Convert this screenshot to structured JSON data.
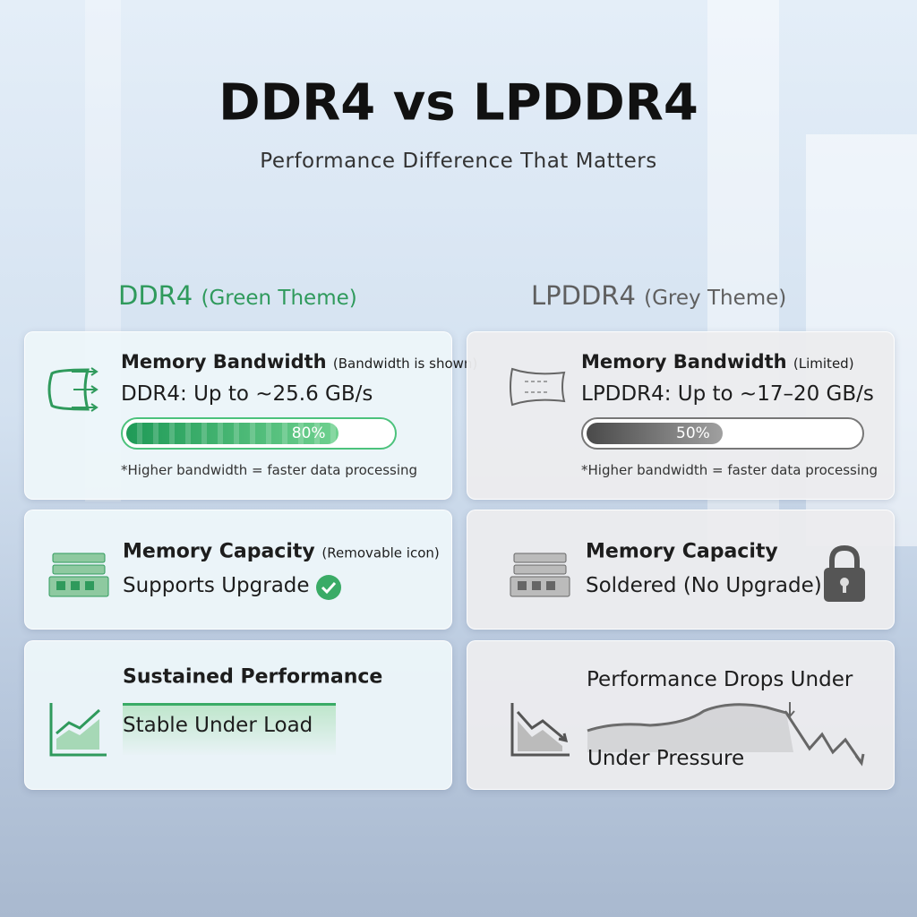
{
  "header": {
    "title": "DDR4 vs LPDDR4",
    "subtitle": "Performance Difference That Matters"
  },
  "columns": [
    {
      "name": "DDR4",
      "theme": "(Green Theme)",
      "color": "#2f9a5c",
      "cards": [
        {
          "title": "Memory Bandwidth",
          "note": "(Bandwidth is shown)",
          "text": "DDR4: Up to ~25.6 GB/s",
          "progress": {
            "value": 80,
            "label": "80%",
            "scale": [
              0,
              100
            ]
          },
          "footnote": "*Higher bandwidth = faster data processing"
        },
        {
          "title": "Memory Capacity",
          "note": "(Removable icon)",
          "text": "Supports Upgrade"
        },
        {
          "title": "Sustained Performance",
          "text": "Stable Under Load"
        }
      ]
    },
    {
      "name": "LPDDR4",
      "theme": "(Grey Theme)",
      "color": "#5f5f5f",
      "cards": [
        {
          "title": "Memory Bandwidth",
          "note": "(Limited)",
          "text": "LPDDR4: Up to ~17–20 GB/s",
          "progress": {
            "value": 50,
            "label": "50%",
            "scale": [
              0,
              100
            ]
          },
          "footnote": "*Higher bandwidth = faster data processing"
        },
        {
          "title": "Memory Capacity",
          "text": "Soldered (No Upgrade)"
        },
        {
          "title": "Performance Drops Under",
          "text": "Under Pressure"
        }
      ]
    }
  ]
}
